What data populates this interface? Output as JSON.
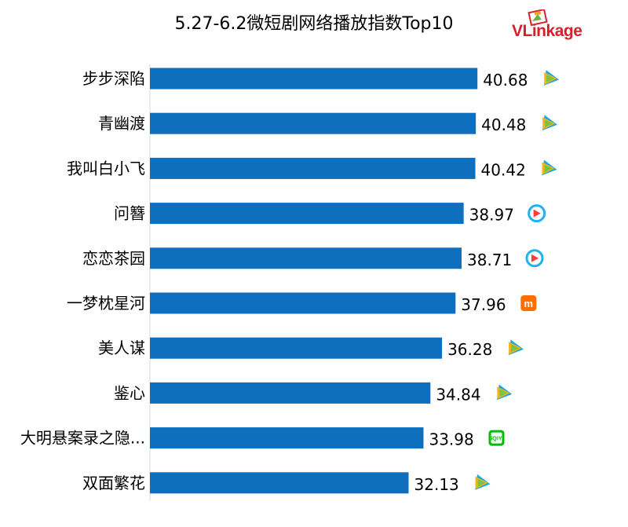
{
  "chart_data": {
    "type": "bar",
    "orientation": "horizontal",
    "title": "5.27-6.2微短剧网络播放指数Top10",
    "categories": [
      "步步深陷",
      "青幽渡",
      "我叫白小飞",
      "问簪",
      "恋恋茶园",
      "一梦枕星河",
      "美人谋",
      "鉴心",
      "大明悬案录之隐...",
      "双面繁花"
    ],
    "values": [
      40.68,
      40.48,
      40.42,
      38.97,
      38.71,
      37.96,
      36.28,
      34.84,
      33.98,
      32.13
    ],
    "value_labels": [
      "40.68",
      "40.48",
      "40.42",
      "38.97",
      "38.71",
      "37.96",
      "36.28",
      "34.84",
      "33.98",
      "32.13"
    ],
    "platform_icons": [
      "tencent-video-icon",
      "tencent-video-icon",
      "tencent-video-icon",
      "youku-icon",
      "youku-icon",
      "mgtv-icon",
      "tencent-video-icon",
      "tencent-video-icon",
      "iqiyi-icon",
      "tencent-video-icon"
    ],
    "bar_color": "#0f6fbf",
    "xlim": [
      0,
      43
    ],
    "grid": false,
    "legend": "none"
  },
  "brand": {
    "name": "VLinkage",
    "color": "#d8202a"
  }
}
